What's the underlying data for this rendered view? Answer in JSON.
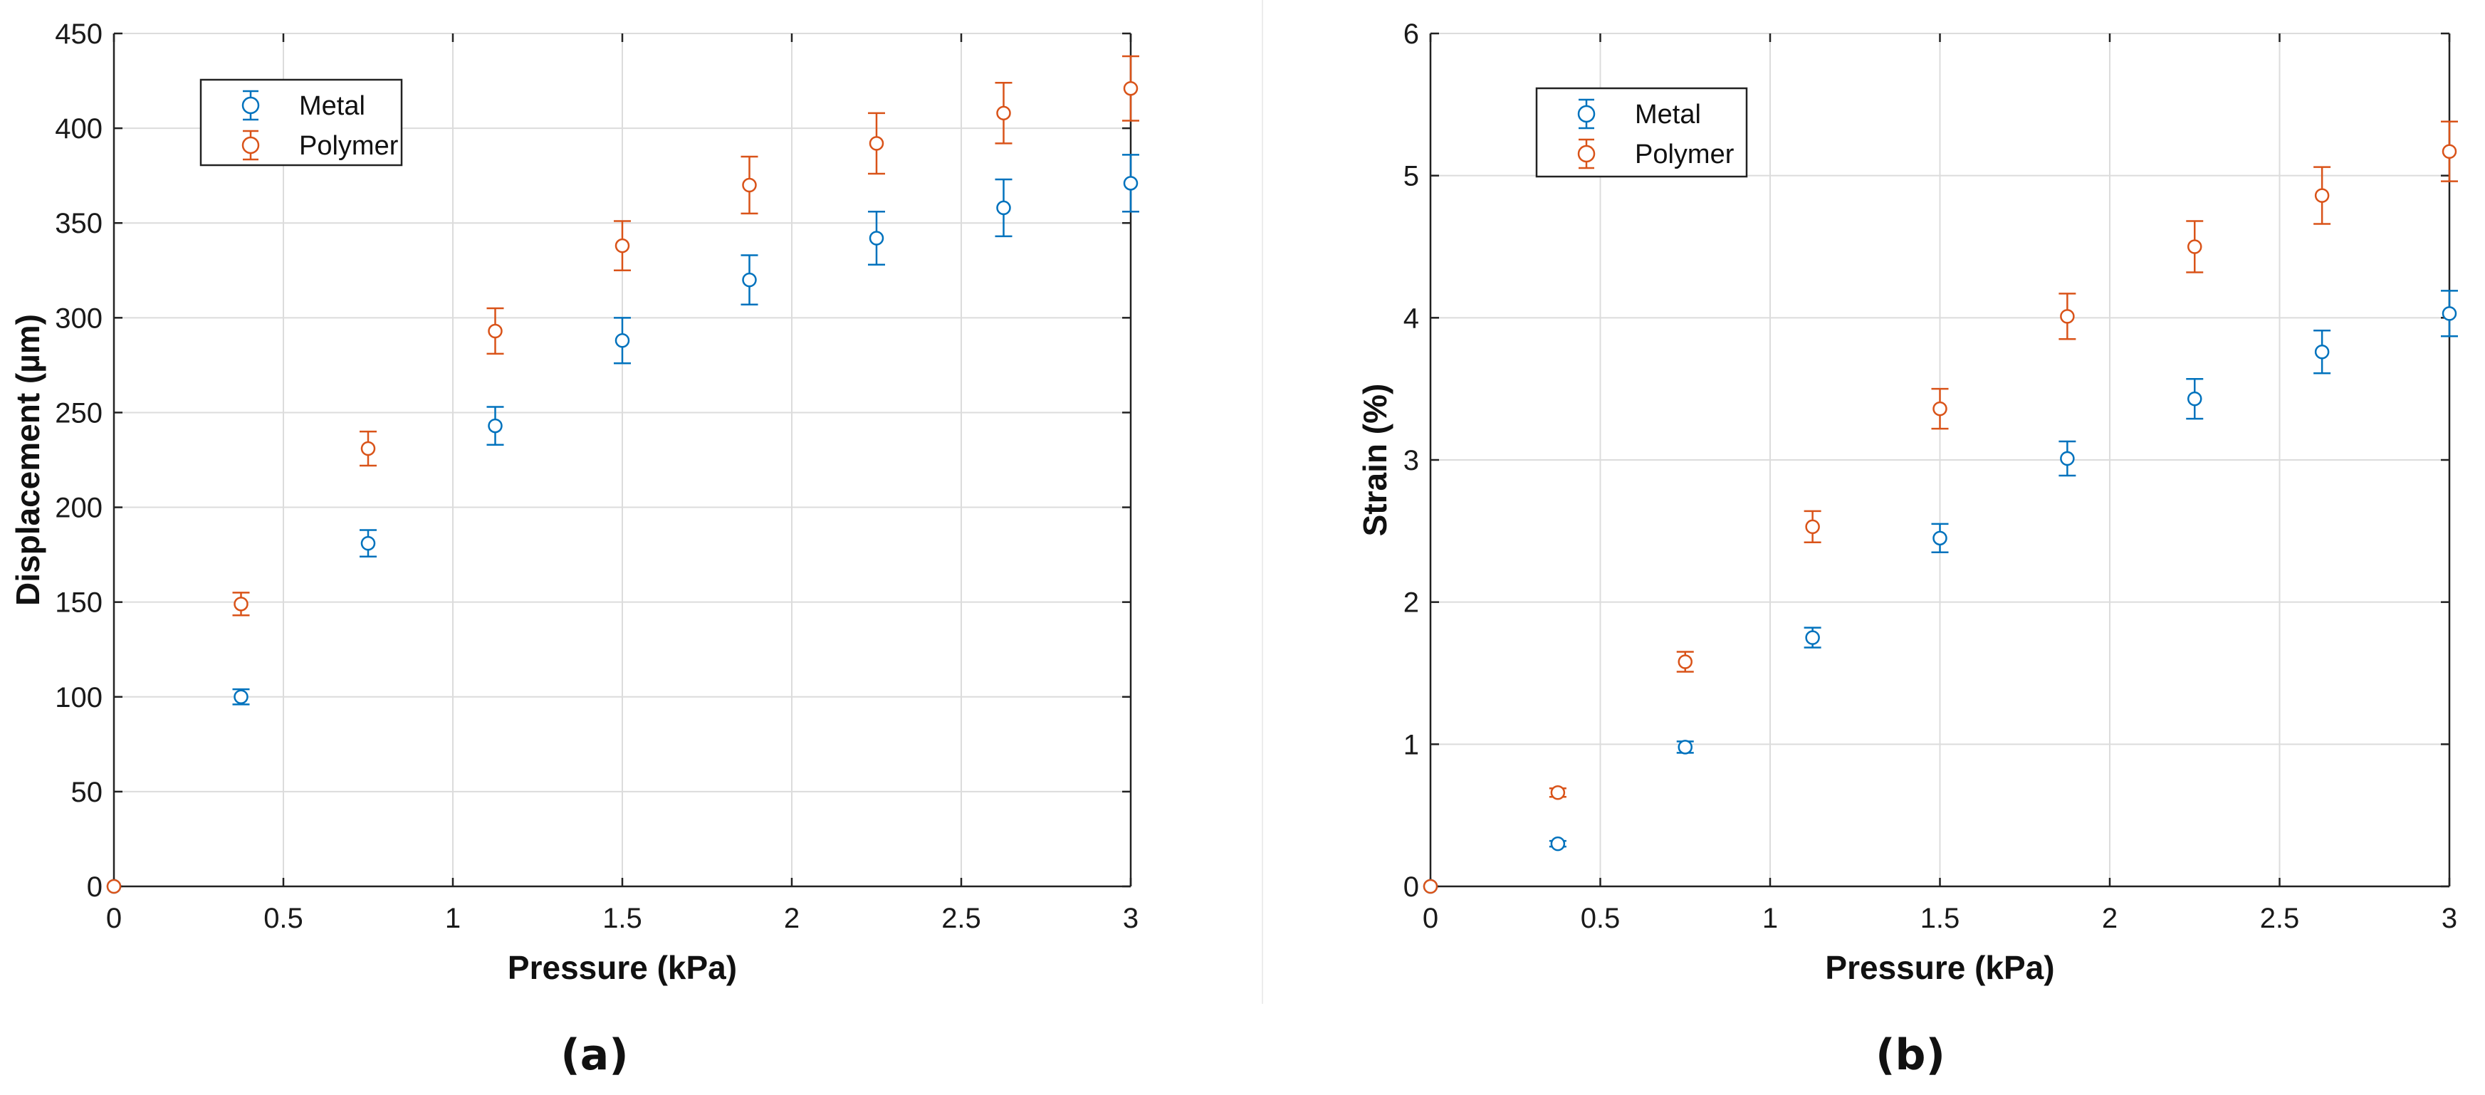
{
  "figure": {
    "captions": [
      "(a)",
      "(b)"
    ],
    "colors": {
      "metal": "#0072BD",
      "polymer": "#D95319",
      "grid": "#dcdcdc",
      "axis": "#222222"
    }
  },
  "chart_data": [
    {
      "type": "scatter",
      "panel": "(a)",
      "title": "",
      "xlabel": "Pressure (kPa)",
      "ylabel": "Displacement (µm)",
      "xlim": [
        0,
        3
      ],
      "ylim": [
        0,
        450
      ],
      "xticks": [
        0,
        0.5,
        1,
        1.5,
        2,
        2.5,
        3
      ],
      "xtick_labels": [
        "0",
        "0.5",
        "1",
        "1.5",
        "2",
        "2.5",
        "3"
      ],
      "yticks": [
        0,
        50,
        100,
        150,
        200,
        250,
        300,
        350,
        400,
        450
      ],
      "ytick_labels": [
        "0",
        "50",
        "100",
        "150",
        "200",
        "250",
        "300",
        "350",
        "400",
        "450"
      ],
      "grid": true,
      "legend_position": "top-left",
      "marker": "open-circle-with-errorbars",
      "series": [
        {
          "name": "Metal",
          "color": "#0072BD",
          "x": [
            0,
            0.375,
            0.75,
            1.125,
            1.5,
            1.875,
            2.25,
            2.625,
            3
          ],
          "y": [
            0,
            100,
            181,
            243,
            288,
            320,
            342,
            358,
            371
          ],
          "err": [
            0,
            4,
            7,
            10,
            12,
            13,
            14,
            15,
            15
          ]
        },
        {
          "name": "Polymer",
          "color": "#D95319",
          "x": [
            0,
            0.375,
            0.75,
            1.125,
            1.5,
            1.875,
            2.25,
            2.625,
            3
          ],
          "y": [
            0,
            149,
            231,
            293,
            338,
            370,
            392,
            408,
            421
          ],
          "err": [
            0,
            6,
            9,
            12,
            13,
            15,
            16,
            16,
            17
          ]
        }
      ]
    },
    {
      "type": "scatter",
      "panel": "(b)",
      "title": "",
      "xlabel": "Pressure (kPa)",
      "ylabel": "Strain (%)",
      "xlim": [
        0,
        3
      ],
      "ylim": [
        0,
        6
      ],
      "xticks": [
        0,
        0.5,
        1,
        1.5,
        2,
        2.5,
        3
      ],
      "xtick_labels": [
        "0",
        "0.5",
        "1",
        "1.5",
        "2",
        "2.5",
        "3"
      ],
      "yticks": [
        0,
        1,
        2,
        3,
        4,
        5,
        6
      ],
      "ytick_labels": [
        "0",
        "1",
        "2",
        "3",
        "4",
        "5",
        "6"
      ],
      "grid": true,
      "legend_position": "top-left",
      "marker": "open-circle-with-errorbars",
      "series": [
        {
          "name": "Metal",
          "color": "#0072BD",
          "x": [
            0,
            0.375,
            0.75,
            1.125,
            1.5,
            1.875,
            2.25,
            2.625,
            3
          ],
          "y": [
            0,
            0.3,
            0.98,
            1.75,
            2.45,
            3.01,
            3.43,
            3.76,
            4.03
          ],
          "err": [
            0,
            0.02,
            0.04,
            0.07,
            0.1,
            0.12,
            0.14,
            0.15,
            0.16
          ]
        },
        {
          "name": "Polymer",
          "color": "#D95319",
          "x": [
            0,
            0.375,
            0.75,
            1.125,
            1.5,
            1.875,
            2.25,
            2.625,
            3
          ],
          "y": [
            0,
            0.66,
            1.58,
            2.53,
            3.36,
            4.01,
            4.5,
            4.86,
            5.17
          ],
          "err": [
            0,
            0.03,
            0.07,
            0.11,
            0.14,
            0.16,
            0.18,
            0.2,
            0.21
          ]
        }
      ]
    }
  ]
}
